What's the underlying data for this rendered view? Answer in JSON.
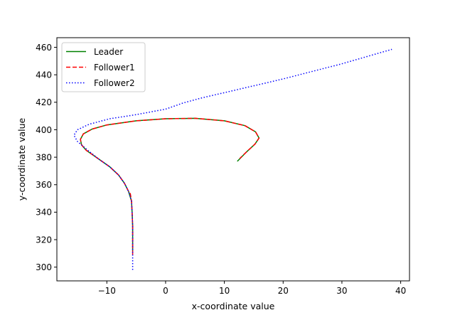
{
  "chart_data": {
    "type": "line",
    "title": "",
    "xlabel": "x-coordinate value",
    "ylabel": "y-coordinate value",
    "xlim": [
      -18.5,
      41.5
    ],
    "ylim": [
      290,
      467
    ],
    "xticks": [
      -10,
      0,
      10,
      20,
      30,
      40
    ],
    "yticks": [
      300,
      320,
      340,
      360,
      380,
      400,
      420,
      440,
      460
    ],
    "grid": false,
    "legend_position": "top-left",
    "series": [
      {
        "name": "Leader",
        "color": "#008000",
        "dash": "solid",
        "points": [
          [
            -5.6,
            312
          ],
          [
            -5.6,
            320
          ],
          [
            -5.6,
            330
          ],
          [
            -5.7,
            340
          ],
          [
            -5.8,
            348
          ],
          [
            -6.3,
            355
          ],
          [
            -7.0,
            361
          ],
          [
            -8.0,
            367
          ],
          [
            -9.5,
            373
          ],
          [
            -11.5,
            379
          ],
          [
            -13.5,
            385
          ],
          [
            -14.3,
            389
          ],
          [
            -14.5,
            393
          ],
          [
            -14.0,
            397
          ],
          [
            -12.5,
            400.5
          ],
          [
            -10.0,
            403.5
          ],
          [
            -5.0,
            406.5
          ],
          [
            0.0,
            408
          ],
          [
            5.0,
            408.3
          ],
          [
            10.0,
            406.5
          ],
          [
            13.5,
            403
          ],
          [
            15.3,
            398.5
          ],
          [
            15.9,
            394
          ],
          [
            15.2,
            389.5
          ],
          [
            13.8,
            384
          ],
          [
            12.2,
            377
          ]
        ]
      },
      {
        "name": "Follower1",
        "color": "#ff0000",
        "dash": "dashed",
        "points": [
          [
            -5.6,
            309
          ],
          [
            -5.6,
            320
          ],
          [
            -5.6,
            330
          ],
          [
            -5.7,
            340
          ],
          [
            -5.8,
            348
          ],
          [
            -6.0,
            353.5
          ],
          [
            -6.3,
            355
          ],
          [
            -7.0,
            361
          ],
          [
            -8.0,
            367
          ],
          [
            -9.5,
            373
          ],
          [
            -11.5,
            379
          ],
          [
            -13.5,
            385
          ],
          [
            -14.3,
            389
          ],
          [
            -14.5,
            393
          ],
          [
            -14.0,
            397
          ],
          [
            -12.5,
            400.5
          ],
          [
            -10.0,
            403.5
          ],
          [
            -5.0,
            406.5
          ],
          [
            0.0,
            408
          ],
          [
            5.0,
            408.3
          ],
          [
            10.0,
            406.5
          ],
          [
            13.5,
            403
          ],
          [
            15.3,
            398.5
          ],
          [
            15.9,
            394
          ],
          [
            15.2,
            389.5
          ],
          [
            13.8,
            384
          ],
          [
            12.6,
            379
          ]
        ]
      },
      {
        "name": "Follower2",
        "color": "#0000ff",
        "dash": "dotted",
        "points": [
          [
            -5.6,
            298
          ],
          [
            -5.6,
            310
          ],
          [
            -5.6,
            320
          ],
          [
            -5.6,
            330
          ],
          [
            -5.7,
            340
          ],
          [
            -5.8,
            348
          ],
          [
            -6.3,
            355
          ],
          [
            -7.0,
            361
          ],
          [
            -8.0,
            367
          ],
          [
            -9.5,
            373
          ],
          [
            -11.5,
            379
          ],
          [
            -13.5,
            386
          ],
          [
            -15.0,
            391.5
          ],
          [
            -15.6,
            396
          ],
          [
            -15.0,
            400
          ],
          [
            -13.0,
            404
          ],
          [
            -9.5,
            408
          ],
          [
            -5.0,
            411
          ],
          [
            0.0,
            415
          ],
          [
            3.0,
            419.5
          ],
          [
            6.0,
            423
          ],
          [
            10.0,
            427
          ],
          [
            20.0,
            437
          ],
          [
            30.0,
            448
          ],
          [
            38.5,
            458.5
          ]
        ]
      }
    ]
  }
}
